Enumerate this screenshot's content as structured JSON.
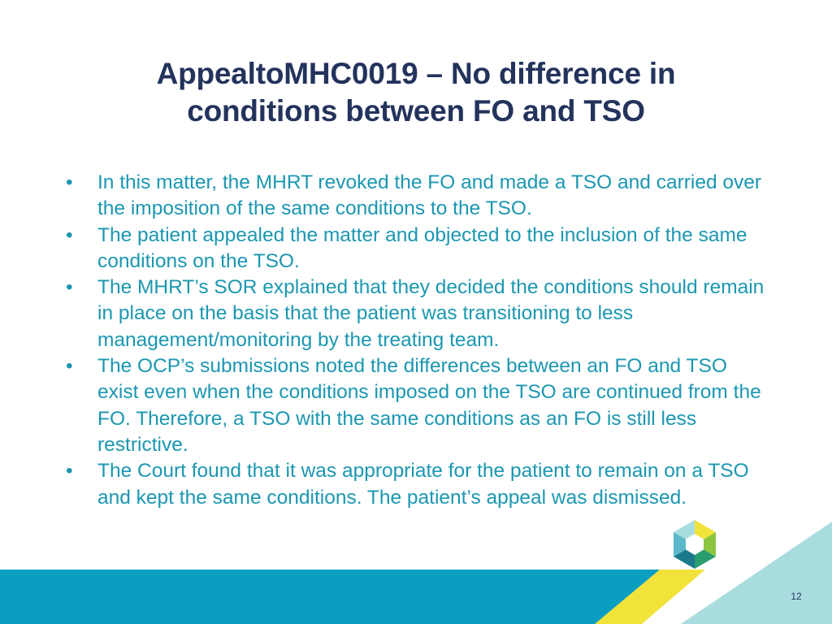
{
  "slide": {
    "title_line1": "AppealtoMHC0019 – No difference in",
    "title_line2": "conditions between FO and TSO",
    "bullets": [
      "In this matter, the MHRT revoked the FO and made a TSO and carried over the imposition of the same conditions to the TSO.",
      "The patient appealed the matter and objected to the inclusion of the same conditions on the TSO.",
      "The MHRT’s SOR explained that they decided the conditions should remain in place on the basis that the patient was transitioning to less management/monitoring by the treating team.",
      "The OCP’s submissions noted the differences between an FO and TSO exist even when the conditions imposed on the TSO are continued from the FO. Therefore, a TSO with the same conditions as an FO is still less restrictive.",
      "The Court found that it was appropriate for the patient to remain on a TSO and kept the same conditions. The patient’s appeal was dismissed."
    ],
    "bullet_glyph": "•",
    "page_number": "12"
  },
  "colors": {
    "title": "#23335c",
    "body_text": "#1b97b1",
    "footer_band": "#0a9ec0",
    "accent_yellow": "#f2e33a",
    "accent_lightblue": "#a9dcdf"
  }
}
